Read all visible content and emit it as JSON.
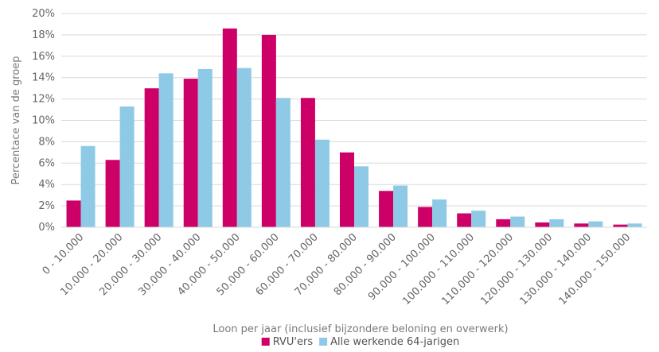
{
  "chart_data": {
    "type": "bar",
    "ylabel": "Percentace van de groep",
    "xlabel": "Loon per jaar (inclusief bijzondere beloning en overwerk)",
    "ylim": [
      0,
      20
    ],
    "ytick_step": 2,
    "ytick_labels": [
      "0%",
      "2%",
      "4%",
      "6%",
      "8%",
      "10%",
      "12%",
      "14%",
      "16%",
      "18%",
      "20%"
    ],
    "grid": true,
    "legend_position": "bottom",
    "categories": [
      "0 - 10.000",
      "10.000 - 20.000",
      "20.000 - 30.000",
      "30.000 - 40.000",
      "40.000 - 50.000",
      "50.000 - 60.000",
      "60.000 - 70.000",
      "70.000 - 80.000",
      "80.000 - 90.000",
      "90.000 - 100.000",
      "100.000 - 110.000",
      "110.000 - 120.000",
      "120.000 - 130.000",
      "130.000 - 140.000",
      "140.000 - 150.000"
    ],
    "series": [
      {
        "name": "RVU'ers",
        "color": "#cc0066",
        "values": [
          2.5,
          6.3,
          13.0,
          13.9,
          18.6,
          18.0,
          12.1,
          7.0,
          3.4,
          1.9,
          1.3,
          0.75,
          0.45,
          0.35,
          0.25
        ]
      },
      {
        "name": "Alle werkende 64-jarigen",
        "color": "#8ecae6",
        "values": [
          7.6,
          11.3,
          14.4,
          14.8,
          14.9,
          12.1,
          8.2,
          5.7,
          3.9,
          2.6,
          1.55,
          1.0,
          0.75,
          0.55,
          0.35
        ]
      }
    ]
  }
}
